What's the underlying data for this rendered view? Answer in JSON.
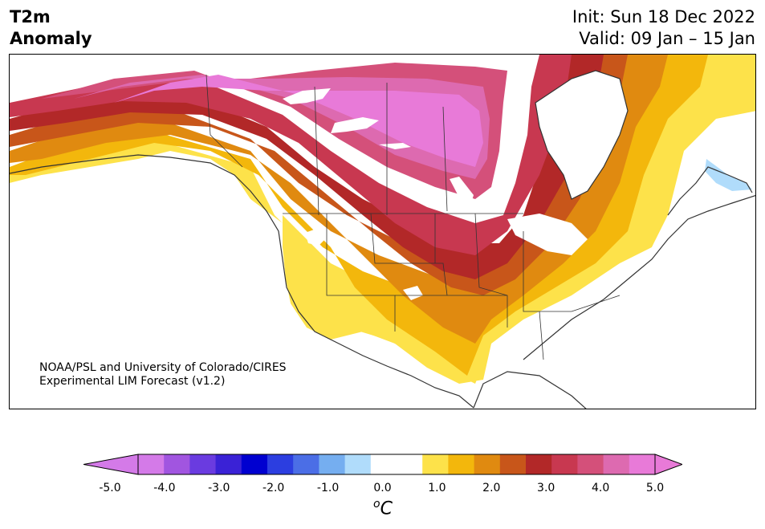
{
  "title": {
    "left_line1": "T2m",
    "left_line2": "Anomaly",
    "init": "Init: Sun 18 Dec 2022",
    "valid": "Valid: 09 Jan – 15 Jan"
  },
  "credit": {
    "line1": "NOAA/PSL and University of Colorado/CIRES",
    "line2": "Experimental LIM Forecast (v1.2)"
  },
  "colorbar": {
    "unit_sup": "o",
    "unit_main": "C",
    "ticks": [
      "-5.0",
      "-4.0",
      "-3.0",
      "-2.0",
      "-1.0",
      "0.0",
      "1.0",
      "2.0",
      "3.0",
      "4.0",
      "5.0"
    ],
    "colors": [
      "#d47ae8",
      "#a155e0",
      "#6a3be0",
      "#3a22d6",
      "#0000d0",
      "#2c3ee0",
      "#4b6ee6",
      "#75aef0",
      "#b0dcfb",
      "#ffffff",
      "#ffffff",
      "#fde24a",
      "#f3b70c",
      "#e08a10",
      "#c8561a",
      "#b22828",
      "#c83850",
      "#d4507a",
      "#dd6ab0",
      "#e87ad8"
    ],
    "under_color": "#d47ae8",
    "over_color": "#e87ad8"
  },
  "map": {
    "region": "North America",
    "shading": [
      "#fde24a",
      "#f3b70c",
      "#e08a10",
      "#c8561a",
      "#b22828",
      "#c83850",
      "#d4507a",
      "#dd6ab0",
      "#e87ad8",
      "#b0dcfb"
    ]
  }
}
